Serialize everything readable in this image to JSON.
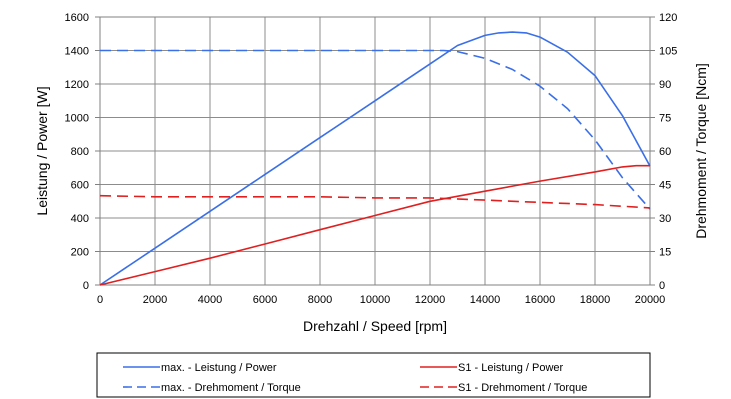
{
  "chart_data": {
    "type": "line",
    "xlabel": "Drehzahl / Speed [rpm]",
    "ylabel": "Leistung / Power [W]",
    "y2label": "Drehmoment / Torque [Ncm]",
    "xlim": [
      0,
      20000
    ],
    "ylim": [
      0,
      1600
    ],
    "y2lim": [
      0,
      120
    ],
    "x_ticks": [
      "0",
      "2000",
      "4000",
      "6000",
      "8000",
      "10000",
      "12000",
      "14000",
      "16000",
      "18000",
      "20000"
    ],
    "y_ticks": [
      "0",
      "200",
      "400",
      "600",
      "800",
      "1000",
      "1200",
      "1400",
      "1600"
    ],
    "y2_ticks": [
      "0",
      "15",
      "30",
      "45",
      "60",
      "75",
      "90",
      "105",
      "120"
    ],
    "grid": true,
    "legend_position": "bottom",
    "series": [
      {
        "name": "max. - Leistung / Power",
        "axis": "left",
        "color": "#3a6fe8",
        "dash": "solid",
        "x": [
          0,
          2000,
          4000,
          6000,
          8000,
          10000,
          12000,
          13000,
          14000,
          14500,
          15000,
          15500,
          16000,
          17000,
          18000,
          19000,
          20000
        ],
        "y": [
          0,
          220,
          440,
          660,
          880,
          1100,
          1320,
          1430,
          1490,
          1505,
          1510,
          1505,
          1480,
          1390,
          1250,
          1010,
          710
        ]
      },
      {
        "name": "max. - Drehmoment / Torque",
        "axis": "right",
        "color": "#3a6fe8",
        "dash": "dashed",
        "x": [
          0,
          2000,
          4000,
          6000,
          8000,
          10000,
          12000,
          12500,
          13000,
          14000,
          15000,
          16000,
          17000,
          18000,
          19000,
          20000
        ],
        "y": [
          105,
          105,
          105,
          105,
          105,
          105,
          105,
          105,
          104.5,
          101.5,
          96.5,
          89,
          79,
          65,
          48,
          34
        ]
      },
      {
        "name": "S1 - Leistung / Power",
        "axis": "left",
        "color": "#e02020",
        "dash": "solid",
        "x": [
          0,
          2000,
          4000,
          6000,
          8000,
          10000,
          12000,
          14000,
          16000,
          18000,
          19000,
          19500,
          20000
        ],
        "y": [
          0,
          80,
          160,
          245,
          330,
          415,
          500,
          560,
          620,
          675,
          705,
          712,
          712
        ]
      },
      {
        "name": "S1 - Drehmoment / Torque",
        "axis": "right",
        "color": "#e02020",
        "dash": "dashed",
        "x": [
          0,
          2000,
          4000,
          6000,
          8000,
          10000,
          12000,
          14000,
          16000,
          18000,
          20000
        ],
        "y": [
          40,
          39.5,
          39.5,
          39.5,
          39.5,
          39,
          39,
          38,
          37,
          36,
          34.5
        ]
      }
    ]
  }
}
